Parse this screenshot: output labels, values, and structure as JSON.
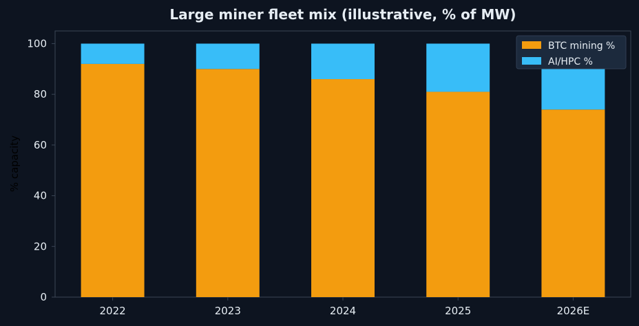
{
  "chart_data": {
    "type": "bar",
    "stacked": true,
    "title": "Large miner fleet mix (illustrative, % of MW)",
    "xlabel": "",
    "ylabel": "% capacity",
    "categories": [
      "2022",
      "2023",
      "2024",
      "2025",
      "2026E"
    ],
    "series": [
      {
        "name": "BTC mining %",
        "values": [
          92,
          90,
          86,
          81,
          74
        ],
        "color": "#f39c0f"
      },
      {
        "name": "AI/HPC %",
        "values": [
          8,
          10,
          14,
          19,
          26
        ],
        "color": "#38bdf8"
      }
    ],
    "ylim": [
      0,
      105
    ],
    "yticks": [
      0,
      20,
      40,
      60,
      80,
      100
    ],
    "grid": false,
    "legend_position": "top-right",
    "colors": {
      "background": "#0d1420",
      "axes": "#3b4656",
      "text": "#e6edf3"
    }
  }
}
